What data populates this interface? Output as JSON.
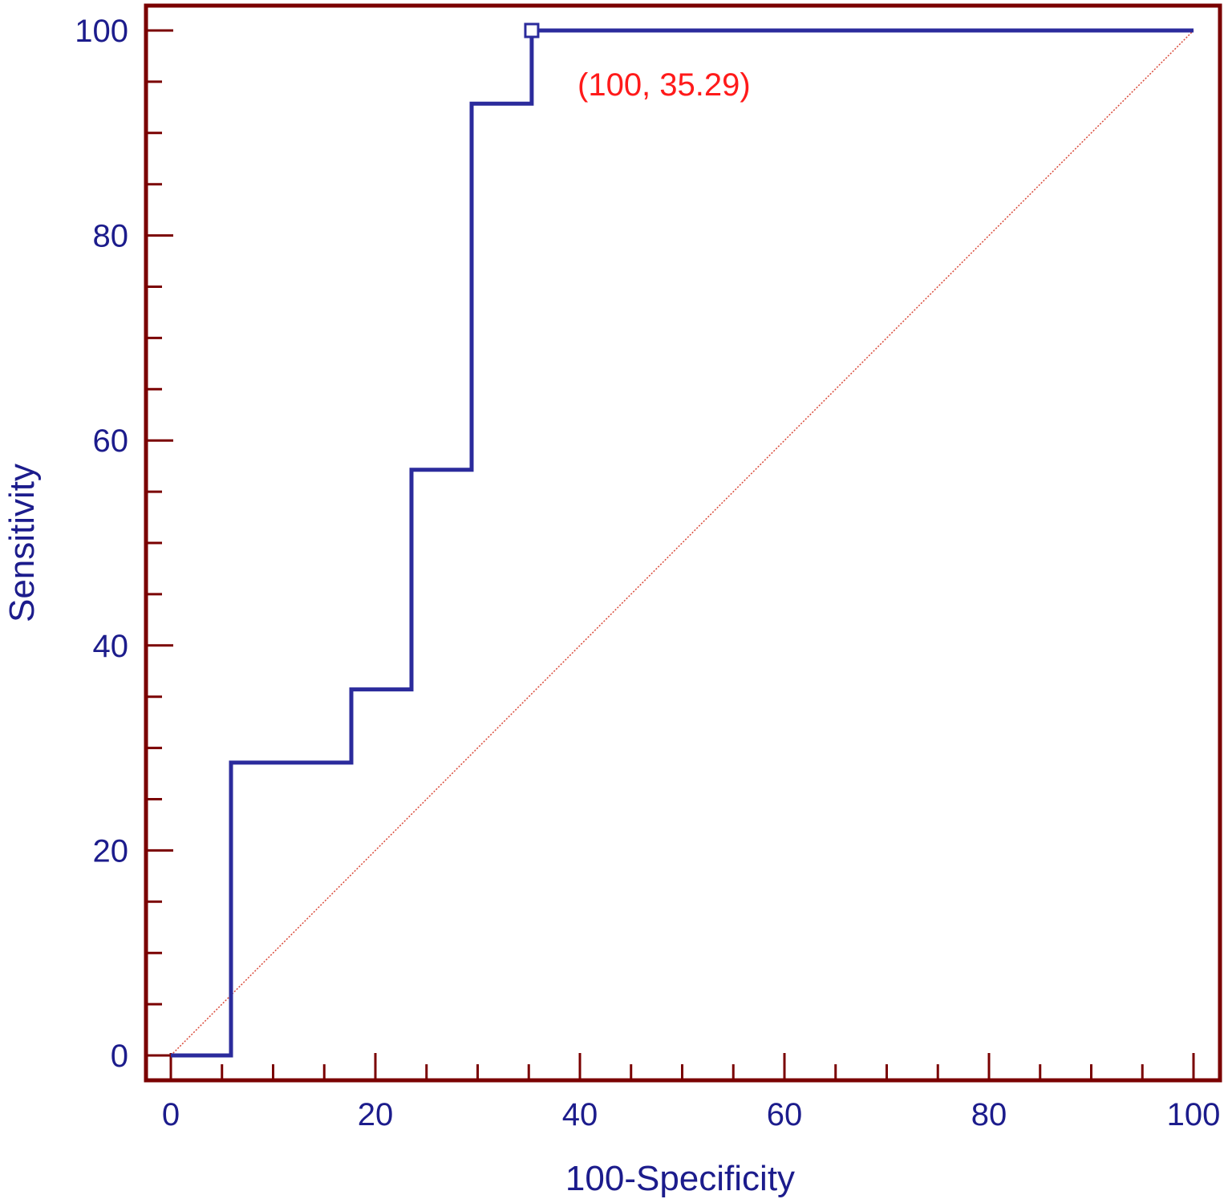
{
  "chart_data": {
    "type": "line",
    "title": "",
    "xlabel": "100-Specificity",
    "ylabel": "Sensitivity",
    "xlim": [
      0,
      100
    ],
    "ylim": [
      0,
      100
    ],
    "x_ticks": [
      0,
      20,
      40,
      60,
      80,
      100
    ],
    "y_ticks": [
      0,
      20,
      40,
      60,
      80,
      100
    ],
    "x_tick_labels": [
      "0",
      "20",
      "40",
      "60",
      "80",
      "100"
    ],
    "y_tick_labels": [
      "0",
      "20",
      "40",
      "60",
      "80",
      "100"
    ],
    "x_minor_step": 5,
    "y_minor_step": 5,
    "grid": false,
    "series": [
      {
        "style": "step",
        "x": [
          0,
          5.88,
          5.88,
          17.65,
          17.65,
          23.53,
          23.53,
          29.41,
          29.41,
          35.29,
          35.29,
          100
        ],
        "y": [
          0,
          0,
          28.57,
          28.57,
          35.71,
          35.71,
          57.14,
          57.14,
          92.86,
          92.86,
          100,
          100
        ]
      },
      {
        "style": "reference-diagonal",
        "x": [
          0,
          100
        ],
        "y": [
          0,
          100
        ]
      }
    ],
    "marker": {
      "x": 35.29,
      "y": 100,
      "shape": "square"
    },
    "annotation": {
      "text": "(100, 35.29)"
    },
    "colors": {
      "frame": "#7a0000",
      "curve": "#2b2b9c",
      "diagonal": "#d94a3a",
      "axis_text": "#1c1c8c",
      "annotation": "#ff1a1a"
    }
  }
}
